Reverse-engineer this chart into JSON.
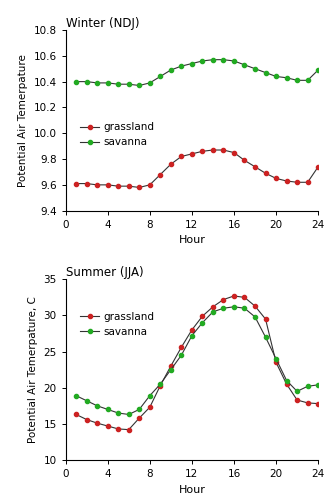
{
  "winter": {
    "title": "Winter (NDJ)",
    "xlabel": "Hour",
    "ylabel": "Potential Air Temerpature",
    "ylim": [
      9.4,
      10.8
    ],
    "yticks": [
      9.4,
      9.6,
      9.8,
      10.0,
      10.2,
      10.4,
      10.6,
      10.8
    ],
    "xlim": [
      0,
      24
    ],
    "xticks": [
      0,
      4,
      8,
      12,
      16,
      20,
      24
    ],
    "hours": [
      1,
      2,
      3,
      4,
      5,
      6,
      7,
      8,
      9,
      10,
      11,
      12,
      13,
      14,
      15,
      16,
      17,
      18,
      19,
      20,
      21,
      22,
      23,
      24
    ],
    "grassland": [
      9.61,
      9.61,
      9.6,
      9.6,
      9.59,
      9.59,
      9.58,
      9.6,
      9.68,
      9.76,
      9.82,
      9.84,
      9.86,
      9.87,
      9.87,
      9.85,
      9.79,
      9.74,
      9.69,
      9.65,
      9.63,
      9.62,
      9.62,
      9.74
    ],
    "savanna": [
      10.4,
      10.4,
      10.39,
      10.39,
      10.38,
      10.38,
      10.37,
      10.39,
      10.44,
      10.49,
      10.52,
      10.54,
      10.56,
      10.57,
      10.57,
      10.56,
      10.53,
      10.5,
      10.47,
      10.44,
      10.43,
      10.41,
      10.41,
      10.49
    ],
    "grassland_color": "#cc2222",
    "savanna_color": "#22aa22",
    "line_color": "#333333"
  },
  "summer": {
    "title": "Summer (JJA)",
    "xlabel": "Hour",
    "ylabel": "Potential Air Temerpature, C",
    "ylim": [
      10,
      35
    ],
    "yticks": [
      10,
      15,
      20,
      25,
      30,
      35
    ],
    "xlim": [
      0,
      24
    ],
    "xticks": [
      0,
      4,
      8,
      12,
      16,
      20,
      24
    ],
    "hours": [
      1,
      2,
      3,
      4,
      5,
      6,
      7,
      8,
      9,
      10,
      11,
      12,
      13,
      14,
      15,
      16,
      17,
      18,
      19,
      20,
      21,
      22,
      23,
      24
    ],
    "grassland": [
      16.3,
      15.6,
      15.1,
      14.7,
      14.3,
      14.2,
      15.8,
      17.3,
      20.3,
      23.0,
      25.6,
      28.0,
      29.9,
      31.2,
      32.2,
      32.7,
      32.5,
      31.3,
      29.5,
      23.5,
      20.5,
      18.3,
      17.9,
      17.8
    ],
    "savanna": [
      18.9,
      18.2,
      17.5,
      17.0,
      16.5,
      16.3,
      17.0,
      18.9,
      20.5,
      22.5,
      24.5,
      27.2,
      29.0,
      30.5,
      31.0,
      31.2,
      31.0,
      29.8,
      27.0,
      24.0,
      21.0,
      19.5,
      20.2,
      20.4
    ],
    "grassland_color": "#cc2222",
    "savanna_color": "#22aa22",
    "line_color": "#333333"
  },
  "fig_width": 3.28,
  "fig_height": 5.0,
  "dpi": 100
}
